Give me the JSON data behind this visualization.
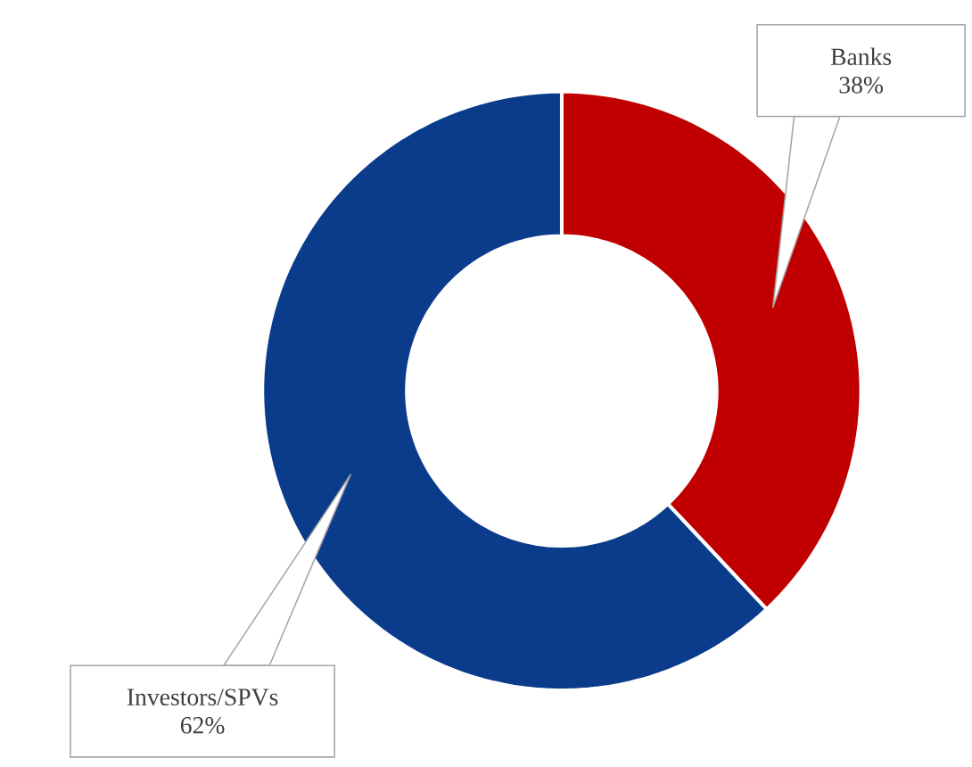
{
  "chart_data": {
    "type": "donut",
    "categories": [
      "Banks",
      "Investors/SPVs"
    ],
    "values": [
      38,
      62
    ],
    "colors": [
      "#c00000",
      "#0b3c8c"
    ],
    "value_labels": [
      "38%",
      "62%"
    ],
    "legend": false
  }
}
